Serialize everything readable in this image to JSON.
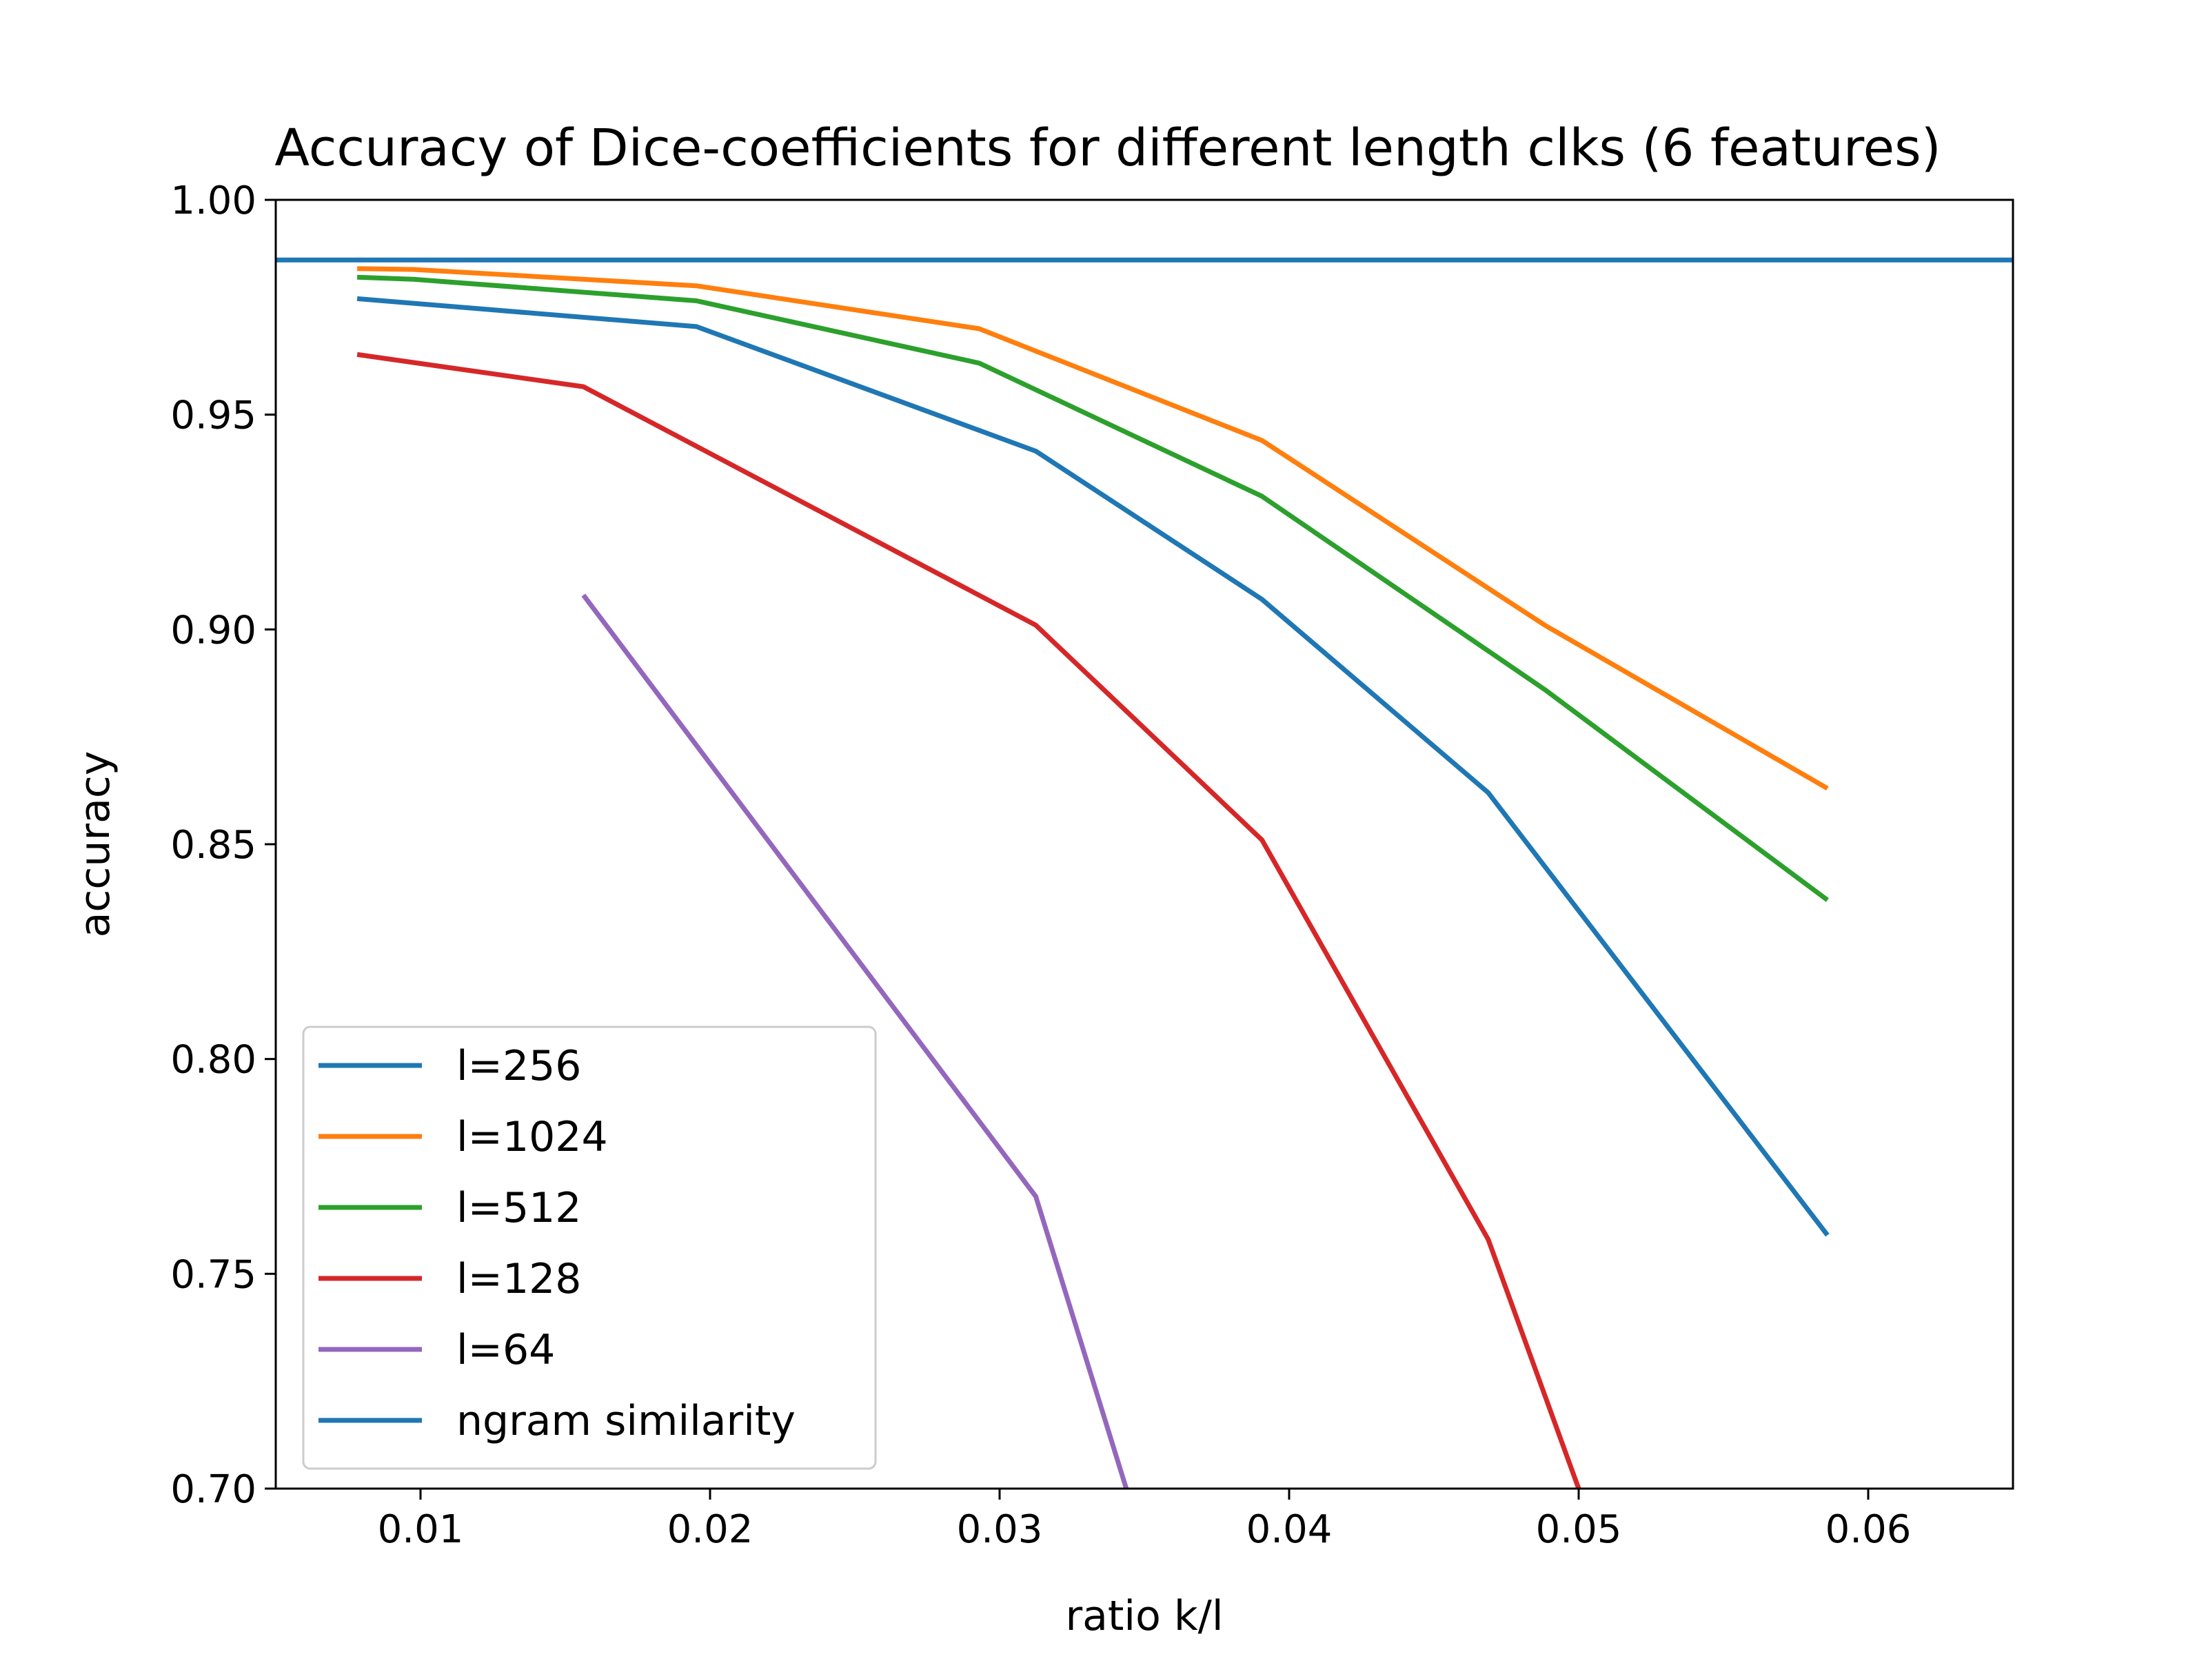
{
  "chart_data": {
    "type": "line",
    "title": "Accuracy of Dice-coefficients for different length clks (6 features)",
    "xlabel": "ratio k/l",
    "ylabel": "accuracy",
    "xlim": [
      0.005,
      0.065
    ],
    "ylim": [
      0.7,
      1.0
    ],
    "x_ticks": [
      {
        "value": 0.01,
        "label": "0.01"
      },
      {
        "value": 0.02,
        "label": "0.02"
      },
      {
        "value": 0.03,
        "label": "0.03"
      },
      {
        "value": 0.04,
        "label": "0.04"
      },
      {
        "value": 0.05,
        "label": "0.05"
      },
      {
        "value": 0.06,
        "label": "0.06"
      }
    ],
    "y_ticks": [
      {
        "value": 0.7,
        "label": "0.70"
      },
      {
        "value": 0.75,
        "label": "0.75"
      },
      {
        "value": 0.8,
        "label": "0.80"
      },
      {
        "value": 0.85,
        "label": "0.85"
      },
      {
        "value": 0.9,
        "label": "0.90"
      },
      {
        "value": 0.95,
        "label": "0.95"
      },
      {
        "value": 1.0,
        "label": "1.00"
      }
    ],
    "grid": false,
    "legend": "lower-left",
    "series": [
      {
        "name": "l=256",
        "color": "#1f77b4",
        "points": [
          [
            0.0078125,
            0.977
          ],
          [
            0.01953125,
            0.9705
          ],
          [
            0.03125,
            0.9415
          ],
          [
            0.0390625,
            0.907
          ],
          [
            0.046875,
            0.862
          ],
          [
            0.05859375,
            0.759
          ]
        ]
      },
      {
        "name": "l=1024",
        "color": "#ff7f0e",
        "points": [
          [
            0.0078125,
            0.984
          ],
          [
            0.009765625,
            0.9838
          ],
          [
            0.01953125,
            0.98
          ],
          [
            0.029296875,
            0.97
          ],
          [
            0.0390625,
            0.944
          ],
          [
            0.048828125,
            0.901
          ],
          [
            0.05859375,
            0.863
          ]
        ]
      },
      {
        "name": "l=512",
        "color": "#2ca02c",
        "points": [
          [
            0.0078125,
            0.982
          ],
          [
            0.009765625,
            0.9815
          ],
          [
            0.01953125,
            0.9765
          ],
          [
            0.029296875,
            0.962
          ],
          [
            0.0390625,
            0.931
          ],
          [
            0.048828125,
            0.886
          ],
          [
            0.05859375,
            0.837
          ]
        ]
      },
      {
        "name": "l=128",
        "color": "#d62728",
        "points": [
          [
            0.0078125,
            0.964
          ],
          [
            0.015625,
            0.9565
          ],
          [
            0.03125,
            0.901
          ],
          [
            0.0390625,
            0.851
          ],
          [
            0.046875,
            0.758
          ],
          [
            0.05,
            0.7
          ]
        ]
      },
      {
        "name": "l=64",
        "color": "#9467bd",
        "points": [
          [
            0.015625,
            0.908
          ],
          [
            0.03125,
            0.768
          ],
          [
            0.034375,
            0.7
          ]
        ]
      },
      {
        "name": "ngram similarity",
        "color": "#1f77b4",
        "type": "hline",
        "y": 0.986
      }
    ]
  }
}
